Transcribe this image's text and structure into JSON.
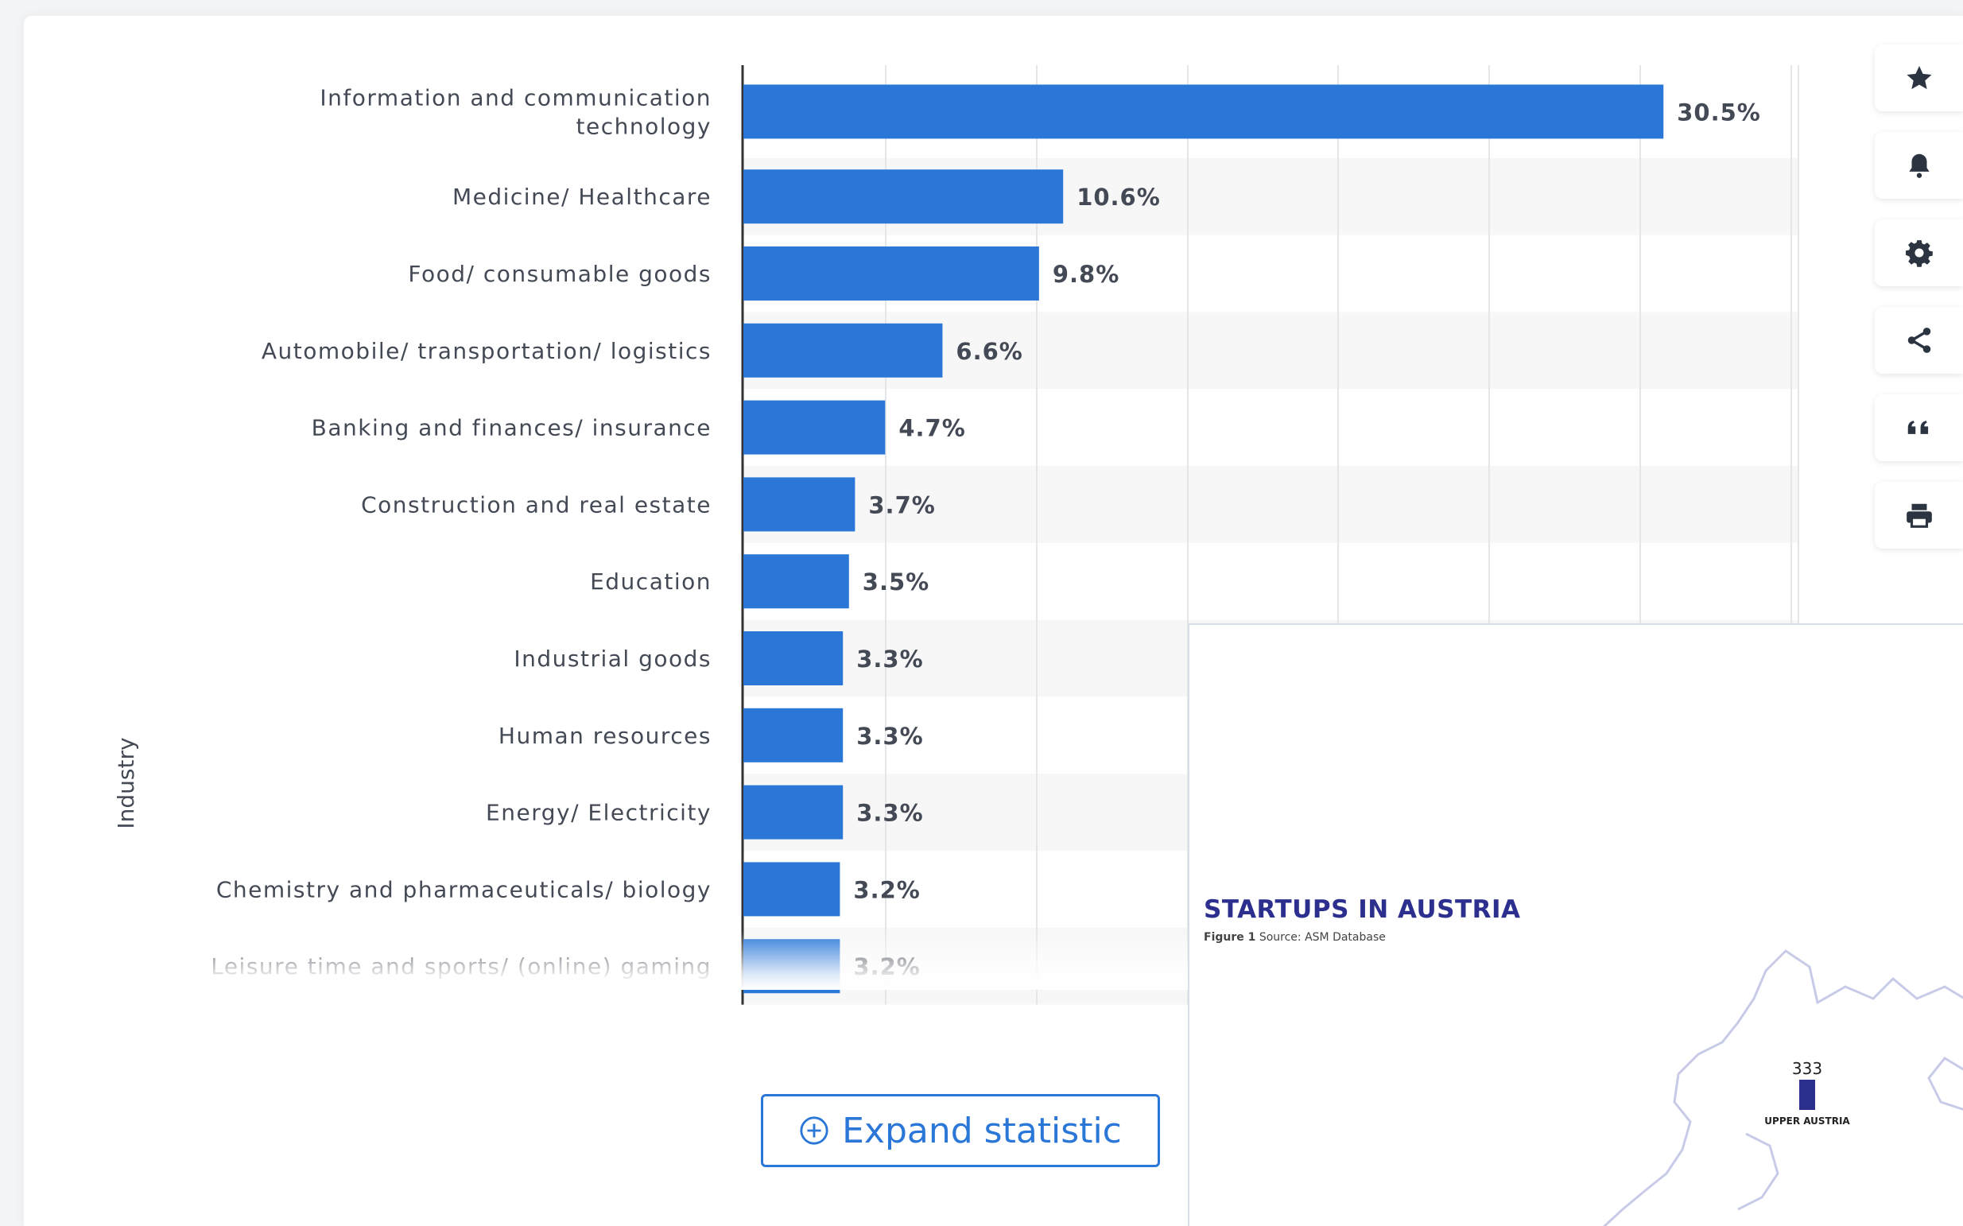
{
  "chart_data": {
    "type": "bar",
    "orientation": "horizontal",
    "ylabel": "Industry",
    "value_suffix": "%",
    "xlim": [
      0,
      35
    ],
    "grid": true,
    "categories": [
      "Information and communication technology",
      "Medicine/ Healthcare",
      "Food/ consumable goods",
      "Automobile/ transportation/ logistics",
      "Banking and finances/ insurance",
      "Construction and real estate",
      "Education",
      "Industrial goods",
      "Human resources",
      "Energy/ Electricity",
      "Chemistry and pharmaceuticals/ biology",
      "Leisure time and sports/ (online) gaming"
    ],
    "category_lines": [
      [
        "Information and communication",
        "technology"
      ],
      [
        "Medicine/ Healthcare"
      ],
      [
        "Food/ consumable goods"
      ],
      [
        "Automobile/ transportation/ logistics"
      ],
      [
        "Banking and finances/ insurance"
      ],
      [
        "Construction and real estate"
      ],
      [
        "Education"
      ],
      [
        "Industrial goods"
      ],
      [
        "Human resources"
      ],
      [
        "Energy/ Electricity"
      ],
      [
        "Chemistry and pharmaceuticals/ biology"
      ],
      [
        "Leisure time and sports/ (online) gaming"
      ]
    ],
    "values": [
      30.5,
      10.6,
      9.8,
      6.6,
      4.7,
      3.7,
      3.5,
      3.3,
      3.3,
      3.3,
      3.2,
      3.2
    ],
    "value_labels": [
      "30.5%",
      "10.6%",
      "9.8%",
      "6.6%",
      "4.7%",
      "3.7%",
      "3.5%",
      "3.3%",
      "3.3%",
      "3.3%",
      "3.2%",
      "3.2%"
    ],
    "bar_color": "#2a77d8"
  },
  "expand_button": {
    "label": "Expand statistic"
  },
  "toolbar": [
    "star-icon",
    "bell-icon",
    "gear-icon",
    "share-icon",
    "quote-icon",
    "print-icon"
  ],
  "overlay": {
    "title": "STARTUPS IN AUSTRIA",
    "caption_bold": "Figure 1",
    "caption_text": "Source: ASM Database",
    "map_value": "333",
    "map_region": "UPPER AUSTRIA",
    "accent": "#2d2f8e"
  }
}
